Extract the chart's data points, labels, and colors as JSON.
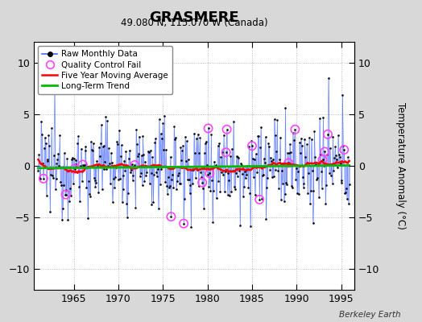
{
  "title": "GRASMERE",
  "subtitle": "49.080 N, 115.070 W (Canada)",
  "ylabel": "Temperature Anomaly (°C)",
  "watermark": "Berkeley Earth",
  "xlim": [
    1960.5,
    1996.5
  ],
  "ylim": [
    -12,
    12
  ],
  "yticks": [
    -10,
    -5,
    0,
    5,
    10
  ],
  "xticks": [
    1965,
    1970,
    1975,
    1980,
    1985,
    1990,
    1995
  ],
  "fig_bg_color": "#d8d8d8",
  "plot_bg_color": "#ffffff",
  "raw_color": "#4466ff",
  "raw_fill_color": "#8899ff",
  "dot_color": "#000000",
  "ma_color": "#ff0000",
  "trend_color": "#00bb00",
  "qc_color": "#ff44ff",
  "seed": 12345,
  "n_years": 35,
  "start_year": 1961,
  "amplitude": 2.2,
  "n_qc": 20
}
